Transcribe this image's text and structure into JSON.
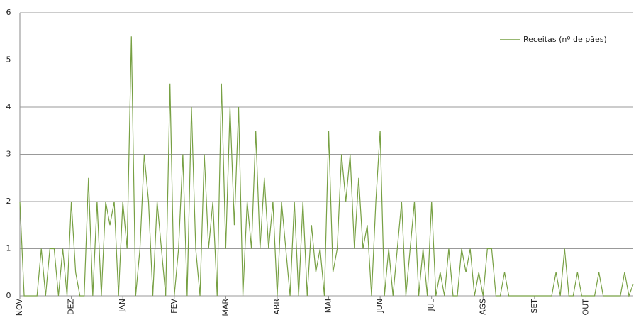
{
  "chart_data": {
    "type": "line",
    "categories": [
      "NOV",
      null,
      null,
      null,
      null,
      null,
      null,
      null,
      null,
      null,
      null,
      null,
      "DEZ",
      null,
      null,
      null,
      null,
      null,
      null,
      null,
      null,
      null,
      null,
      null,
      "JAN",
      null,
      null,
      null,
      null,
      null,
      null,
      null,
      null,
      null,
      null,
      null,
      "FEV",
      null,
      null,
      null,
      null,
      null,
      null,
      null,
      null,
      null,
      null,
      null,
      "MAR",
      null,
      null,
      null,
      null,
      null,
      null,
      null,
      null,
      null,
      null,
      null,
      "ABR",
      null,
      null,
      null,
      null,
      null,
      null,
      null,
      null,
      null,
      null,
      null,
      "MAI",
      null,
      null,
      null,
      null,
      null,
      null,
      null,
      null,
      null,
      null,
      null,
      "JUN",
      null,
      null,
      null,
      null,
      null,
      null,
      null,
      null,
      null,
      null,
      null,
      "JUL",
      null,
      null,
      null,
      null,
      null,
      null,
      null,
      null,
      null,
      null,
      null,
      "AGS",
      null,
      null,
      null,
      null,
      null,
      null,
      null,
      null,
      null,
      null,
      null,
      "SET",
      null,
      null,
      null,
      null,
      null,
      null,
      null,
      null,
      null,
      null,
      null,
      "OUT",
      null,
      null,
      null,
      null,
      null,
      null,
      null,
      null,
      null,
      null,
      null
    ],
    "series": [
      {
        "name": "Receitas (nº de pães)",
        "color": "#77a043",
        "values": [
          2,
          0,
          0,
          0,
          0,
          1,
          0,
          1,
          1,
          0,
          1,
          0,
          2,
          0.5,
          0,
          0,
          2.5,
          0,
          2,
          0,
          2,
          1.5,
          2,
          0,
          2,
          1,
          5.5,
          0,
          1,
          3,
          2,
          0,
          2,
          1,
          0,
          4.5,
          0,
          1,
          3,
          0,
          4,
          1,
          0,
          3,
          1,
          2,
          0,
          4.5,
          1,
          4,
          1.5,
          4,
          0,
          2,
          1,
          3.5,
          1,
          2.5,
          1,
          2,
          0,
          2,
          1,
          0,
          2,
          0,
          2,
          0,
          1.5,
          0.5,
          1,
          0,
          3.5,
          0.5,
          1,
          3,
          2,
          3,
          1,
          2.5,
          1,
          1.5,
          0,
          2,
          3.5,
          0,
          1,
          0,
          1,
          2,
          0,
          1,
          2,
          0,
          1,
          0,
          2,
          0,
          0.5,
          0,
          1,
          0,
          0,
          1,
          0.5,
          1,
          0,
          0.5,
          0,
          1,
          1,
          0,
          0,
          0.5,
          0,
          0,
          0,
          0,
          0,
          0,
          0,
          0,
          0,
          0,
          0,
          0.5,
          0,
          1,
          0,
          0,
          0.5,
          0,
          0,
          0,
          0,
          0.5,
          0,
          0,
          0,
          0,
          0,
          0.5,
          0,
          0.25
        ]
      }
    ],
    "ylim": [
      0,
      6
    ],
    "yticks": [
      0,
      1,
      2,
      3,
      4,
      5,
      6
    ],
    "grid": true,
    "legend": "upper right"
  }
}
